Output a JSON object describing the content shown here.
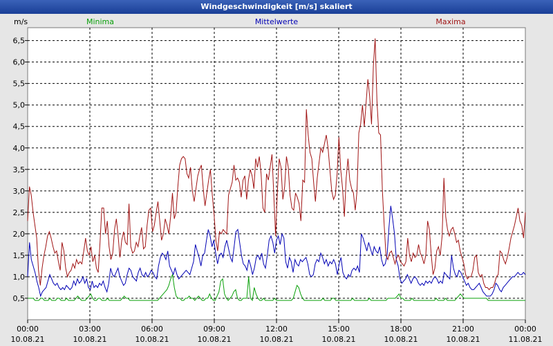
{
  "chart_data": {
    "type": "line",
    "title": "Windgeschwindigkeit [m/s] skaliert",
    "ylabel": "m/s",
    "ylim": [
      0.0,
      6.8
    ],
    "y_ticks": [
      "0,5",
      "1,0",
      "1,5",
      "2,0",
      "2,5",
      "3,0",
      "3,5",
      "4,0",
      "4,5",
      "5,0",
      "5,5",
      "6,0",
      "6,5"
    ],
    "y_tick_values": [
      0.5,
      1.0,
      1.5,
      2.0,
      2.5,
      3.0,
      3.5,
      4.0,
      4.5,
      5.0,
      5.5,
      6.0,
      6.5
    ],
    "xlim_hours": [
      0,
      24
    ],
    "x_ticks": [
      {
        "hour": 0,
        "time": "00:00",
        "date": "10.08.21"
      },
      {
        "hour": 3,
        "time": "03:00",
        "date": "10.08.21"
      },
      {
        "hour": 6,
        "time": "06:00",
        "date": "10.08.21"
      },
      {
        "hour": 9,
        "time": "09:00",
        "date": "10.08.21"
      },
      {
        "hour": 12,
        "time": "12:00",
        "date": "10.08.21"
      },
      {
        "hour": 15,
        "time": "15:00",
        "date": "10.08.21"
      },
      {
        "hour": 18,
        "time": "18:00",
        "date": "10.08.21"
      },
      {
        "hour": 21,
        "time": "21:00",
        "date": "10.08.21"
      },
      {
        "hour": 24,
        "time": "00:00",
        "date": "11.08.21"
      }
    ],
    "series": [
      {
        "name": "Minima",
        "color": "#0aa00a",
        "values": [
          0.5,
          0.5,
          0.5,
          0.5,
          0.45,
          0.45,
          0.45,
          0.5,
          0.5,
          0.45,
          0.45,
          0.45,
          0.5,
          0.45,
          0.45,
          0.45,
          0.5,
          0.5,
          0.45,
          0.45,
          0.45,
          0.5,
          0.45,
          0.45,
          0.45,
          0.45,
          0.5,
          0.55,
          0.5,
          0.45,
          0.45,
          0.45,
          0.5,
          0.55,
          0.6,
          0.5,
          0.45,
          0.45,
          0.5,
          0.5,
          0.45,
          0.45,
          0.45,
          0.5,
          0.45,
          0.45,
          0.45,
          0.45,
          0.45,
          0.45,
          0.45,
          0.5,
          0.55,
          0.5,
          0.5,
          0.45,
          0.45,
          0.45,
          0.45,
          0.45,
          0.45,
          0.45,
          0.45,
          0.45,
          0.45,
          0.45,
          0.45,
          0.45,
          0.45,
          0.45,
          0.45,
          0.5,
          0.55,
          0.6,
          0.65,
          0.7,
          0.8,
          0.95,
          1.05,
          0.75,
          0.55,
          0.5,
          0.5,
          0.45,
          0.45,
          0.5,
          0.5,
          0.55,
          0.5,
          0.5,
          0.45,
          0.5,
          0.55,
          0.5,
          0.45,
          0.45,
          0.5,
          0.5,
          0.6,
          0.5,
          0.45,
          0.45,
          0.55,
          0.65,
          0.9,
          0.95,
          0.6,
          0.5,
          0.45,
          0.5,
          0.55,
          0.65,
          0.7,
          0.5,
          0.45,
          0.45,
          0.5,
          0.5,
          0.5,
          1.0,
          0.5,
          0.45,
          0.75,
          0.6,
          0.5,
          0.45,
          0.45,
          0.5,
          0.45,
          0.45,
          0.45,
          0.45,
          0.45,
          0.5,
          0.45,
          0.45,
          0.45,
          0.45,
          0.45,
          0.45,
          0.45,
          0.45,
          0.45,
          0.5,
          0.65,
          0.8,
          0.75,
          0.6,
          0.5,
          0.45,
          0.45,
          0.45,
          0.45,
          0.45,
          0.45,
          0.45,
          0.45,
          0.45,
          0.45,
          0.5,
          0.45,
          0.45,
          0.45,
          0.45,
          0.5,
          0.5,
          0.45,
          0.45,
          0.45,
          0.45,
          0.45,
          0.45,
          0.45,
          0.45,
          0.45,
          0.5,
          0.45,
          0.45,
          0.45,
          0.45,
          0.45,
          0.45,
          0.45,
          0.45,
          0.5,
          0.45,
          0.45,
          0.45,
          0.45,
          0.45,
          0.45,
          0.45,
          0.45,
          0.45,
          0.5,
          0.5,
          0.5,
          0.5,
          0.5,
          0.55,
          0.6,
          0.5,
          0.5,
          0.45,
          0.45,
          0.45,
          0.45,
          0.5,
          0.45,
          0.45,
          0.45,
          0.45,
          0.45,
          0.45,
          0.45,
          0.45,
          0.45,
          0.45,
          0.45,
          0.45,
          0.5,
          0.45,
          0.45,
          0.45,
          0.45,
          0.5,
          0.45,
          0.45,
          0.45,
          0.45,
          0.45,
          0.5,
          0.55,
          0.6,
          0.55,
          0.5,
          0.5,
          0.5,
          0.5,
          0.5,
          0.5,
          0.5,
          0.5,
          0.5,
          0.5,
          0.5,
          0.5,
          0.5,
          0.45,
          0.45,
          0.45,
          0.45,
          0.45,
          0.45,
          0.45,
          0.45,
          0.45,
          0.45,
          0.45,
          0.45,
          0.45,
          0.45,
          0.45,
          0.45,
          0.45,
          0.45,
          0.45,
          0.45,
          0.45
        ]
      },
      {
        "name": "Mittelwerte",
        "color": "#0000b4",
        "values": [
          1.0,
          1.8,
          1.4,
          1.25,
          1.1,
          0.9,
          0.75,
          0.55,
          0.65,
          0.7,
          0.75,
          0.9,
          1.05,
          0.95,
          0.85,
          0.8,
          0.85,
          0.75,
          0.7,
          0.75,
          0.7,
          0.8,
          0.75,
          0.7,
          0.75,
          0.9,
          0.8,
          0.95,
          0.85,
          0.9,
          1.0,
          0.85,
          0.95,
          0.75,
          0.7,
          0.9,
          0.75,
          0.8,
          0.75,
          0.85,
          0.8,
          0.9,
          0.75,
          0.65,
          0.85,
          1.2,
          1.05,
          1.0,
          1.1,
          1.2,
          1.0,
          0.9,
          0.8,
          0.85,
          1.05,
          1.2,
          1.15,
          1.0,
          0.95,
          0.9,
          1.1,
          1.2,
          1.05,
          1.0,
          1.1,
          1.0,
          1.05,
          1.15,
          1.1,
          1.0,
          0.95,
          1.25,
          1.45,
          1.55,
          1.5,
          1.4,
          1.6,
          1.25,
          1.15,
          1.05,
          1.2,
          1.05,
          0.95,
          1.0,
          1.05,
          1.1,
          1.15,
          1.1,
          1.05,
          1.2,
          1.35,
          1.75,
          1.6,
          1.45,
          1.25,
          1.5,
          1.55,
          1.85,
          2.1,
          1.95,
          1.7,
          1.85,
          1.55,
          1.3,
          1.5,
          1.55,
          1.45,
          1.7,
          1.85,
          1.65,
          1.45,
          1.35,
          1.7,
          2.05,
          2.1,
          1.8,
          1.5,
          1.3,
          1.25,
          1.15,
          1.4,
          1.25,
          1.05,
          1.2,
          1.45,
          1.5,
          1.4,
          1.55,
          1.3,
          1.2,
          1.5,
          1.85,
          1.95,
          1.8,
          1.55,
          1.85,
          1.95,
          1.75,
          2.0,
          1.9,
          1.35,
          1.2,
          1.45,
          1.35,
          1.1,
          1.4,
          1.3,
          1.25,
          1.4,
          1.35,
          1.4,
          1.45,
          1.3,
          1.05,
          1.0,
          1.05,
          1.3,
          1.4,
          1.35,
          1.55,
          1.45,
          1.3,
          1.4,
          1.25,
          1.35,
          1.3,
          1.4,
          1.3,
          1.05,
          1.3,
          1.45,
          1.1,
          1.0,
          0.95,
          1.05,
          1.0,
          1.15,
          1.2,
          1.15,
          1.25,
          1.1,
          2.0,
          1.9,
          1.75,
          1.6,
          1.8,
          1.65,
          1.5,
          1.7,
          1.6,
          1.55,
          1.7,
          1.4,
          1.25,
          1.3,
          1.5,
          2.15,
          2.65,
          2.35,
          2.0,
          1.4,
          1.25,
          0.95,
          0.85,
          0.9,
          0.95,
          1.05,
          0.95,
          0.85,
          0.95,
          1.0,
          0.95,
          0.85,
          0.8,
          0.85,
          0.8,
          0.9,
          0.85,
          0.9,
          0.85,
          0.95,
          1.0,
          0.95,
          0.85,
          0.9,
          0.85,
          1.1,
          1.05,
          1.0,
          0.95,
          1.5,
          1.2,
          1.05,
          1.0,
          1.15,
          1.1,
          1.0,
          0.9,
          0.8,
          0.85,
          0.75,
          0.7,
          0.7,
          0.75,
          0.8,
          0.85,
          0.75,
          0.65,
          0.6,
          0.55,
          0.55,
          0.55,
          0.6,
          0.7,
          0.85,
          0.8,
          0.7,
          0.65,
          0.75,
          0.8,
          0.85,
          0.9,
          0.95,
          1.0,
          1.0,
          1.05,
          1.1,
          1.05,
          1.05,
          1.1,
          1.05
        ]
      },
      {
        "name": "Maxima",
        "color": "#a01414",
        "values": [
          2.3,
          3.1,
          2.9,
          2.5,
          2.2,
          1.9,
          1.15,
          0.8,
          1.2,
          1.5,
          1.7,
          1.95,
          2.05,
          1.9,
          1.7,
          1.55,
          1.6,
          1.35,
          1.15,
          1.8,
          1.6,
          1.2,
          1.0,
          1.1,
          1.15,
          1.3,
          1.2,
          1.4,
          1.3,
          1.35,
          1.3,
          1.6,
          1.9,
          1.6,
          1.5,
          1.7,
          1.35,
          1.5,
          1.2,
          1.1,
          1.8,
          2.6,
          2.6,
          2.0,
          2.3,
          1.7,
          1.4,
          1.55,
          2.1,
          2.35,
          1.95,
          1.45,
          1.85,
          2.05,
          1.8,
          1.75,
          2.7,
          1.7,
          1.55,
          1.6,
          1.8,
          1.7,
          1.95,
          2.15,
          1.65,
          1.7,
          2.2,
          2.55,
          2.6,
          2.05,
          2.2,
          2.5,
          2.75,
          2.3,
          1.85,
          2.0,
          2.35,
          2.2,
          2.0,
          2.4,
          2.95,
          2.35,
          2.5,
          3.1,
          3.6,
          3.75,
          3.8,
          3.75,
          3.4,
          3.3,
          3.55,
          3.0,
          2.75,
          3.05,
          3.35,
          3.5,
          3.6,
          3.05,
          2.65,
          2.95,
          3.25,
          3.5,
          2.9,
          2.45,
          1.85,
          1.6,
          2.05,
          2.0,
          2.1,
          2.05,
          2.0,
          2.9,
          3.05,
          3.2,
          3.6,
          3.25,
          3.3,
          3.2,
          2.85,
          3.25,
          3.35,
          2.8,
          3.25,
          3.5,
          3.35,
          3.05,
          3.75,
          3.55,
          3.8,
          3.4,
          2.6,
          2.5,
          3.4,
          3.25,
          3.55,
          3.85,
          2.9,
          1.95,
          3.0,
          3.75,
          3.55,
          2.8,
          3.1,
          3.8,
          3.55,
          2.9,
          2.6,
          2.55,
          2.95,
          2.85,
          2.7,
          2.3,
          3.25,
          3.2,
          4.9,
          4.3,
          3.9,
          3.75,
          3.2,
          2.75,
          3.3,
          3.65,
          4.0,
          3.9,
          4.1,
          4.3,
          4.0,
          3.5,
          3.0,
          2.8,
          2.9,
          3.4,
          4.25,
          3.5,
          3.05,
          2.4,
          3.3,
          3.75,
          3.25,
          3.05,
          2.95,
          2.55,
          3.0,
          4.35,
          4.55,
          5.0,
          4.5,
          5.05,
          5.6,
          5.2,
          4.55,
          5.9,
          6.55,
          5.1,
          4.35,
          4.3,
          3.0,
          2.2,
          1.5,
          1.4,
          1.55,
          1.6,
          1.45,
          1.3,
          1.45,
          1.5,
          1.35,
          1.3,
          1.25,
          1.35,
          1.9,
          1.5,
          1.35,
          1.55,
          1.45,
          1.5,
          1.75,
          1.55,
          1.45,
          1.3,
          1.5,
          2.3,
          2.1,
          1.5,
          1.05,
          1.2,
          1.6,
          1.7,
          1.5,
          1.95,
          3.3,
          2.4,
          2.1,
          1.95,
          2.1,
          2.15,
          2.0,
          1.8,
          1.85,
          1.6,
          1.45,
          1.3,
          1.05,
          0.95,
          1.0,
          1.0,
          1.15,
          1.45,
          1.5,
          1.1,
          1.0,
          1.05,
          0.85,
          0.75,
          0.75,
          0.7,
          0.75,
          0.75,
          0.85,
          1.0,
          1.05,
          1.6,
          1.55,
          1.4,
          1.3,
          1.45,
          1.65,
          1.9,
          2.05,
          2.2,
          2.4,
          2.6,
          2.3,
          2.2,
          1.9,
          2.5
        ]
      }
    ],
    "legend": [
      {
        "name": "Minima",
        "color": "#0aa00a"
      },
      {
        "name": "Mittelwerte",
        "color": "#0000b4"
      },
      {
        "name": "Maxima",
        "color": "#a01414"
      }
    ]
  }
}
